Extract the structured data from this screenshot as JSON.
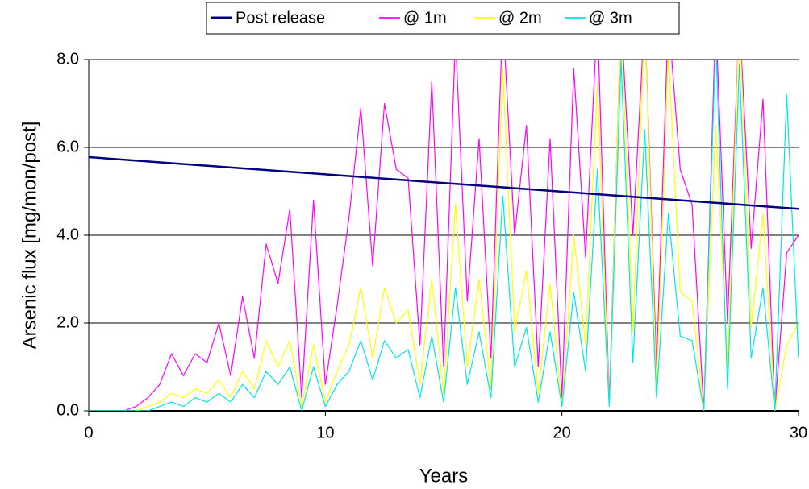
{
  "chart_data": {
    "type": "line",
    "x_label": "Years",
    "y_label": "Arsenic flux [mg/mon/post]",
    "x": [
      0,
      0.5,
      1,
      1.5,
      2,
      2.5,
      3,
      3.5,
      4,
      4.5,
      5,
      5.5,
      6,
      6.5,
      7,
      7.5,
      8,
      8.5,
      9,
      9.5,
      10,
      10.5,
      11,
      11.5,
      12,
      12.5,
      13,
      13.5,
      14,
      14.5,
      15,
      15.5,
      16,
      16.5,
      17,
      17.5,
      18,
      18.5,
      19,
      19.5,
      20,
      20.5,
      21,
      21.5,
      22,
      22.5,
      23,
      23.5,
      24,
      24.5,
      25,
      25.5,
      26,
      26.5,
      27,
      27.5,
      28,
      28.5,
      29,
      29.5,
      30
    ],
    "series": [
      {
        "name": "Post release",
        "color": "#000080",
        "width": 2.5,
        "x": [
          0,
          30
        ],
        "values": [
          5.78,
          4.6
        ]
      },
      {
        "name": "@ 1m",
        "color": "#ff00ff",
        "width": 1.2,
        "values": [
          0,
          0,
          0,
          0,
          0.1,
          0.3,
          0.6,
          1.3,
          0.8,
          1.3,
          1.1,
          2.0,
          0.8,
          2.6,
          1.2,
          3.8,
          2.9,
          4.6,
          0.3,
          4.8,
          0.6,
          2.4,
          4.4,
          6.9,
          3.3,
          7.0,
          5.5,
          5.3,
          1.5,
          7.5,
          1.0,
          8.5,
          2.5,
          6.2,
          1.2,
          9,
          4.0,
          6.5,
          1.0,
          6.2,
          0.3,
          7.8,
          3.5,
          9,
          0.2,
          9,
          4,
          9,
          1,
          9,
          5.5,
          4.7,
          0,
          9,
          2,
          9,
          3.7,
          7.1,
          0,
          3.6,
          4.0
        ]
      },
      {
        "name": "@ 2m",
        "color": "#ffff00",
        "width": 1.2,
        "values": [
          0,
          0,
          0,
          0,
          0,
          0.1,
          0.2,
          0.4,
          0.3,
          0.5,
          0.4,
          0.7,
          0.3,
          0.9,
          0.5,
          1.6,
          1.0,
          1.6,
          0.1,
          1.5,
          0.2,
          0.9,
          1.5,
          2.8,
          1.2,
          2.8,
          2.0,
          2.3,
          0.6,
          3.0,
          0.4,
          4.7,
          1.0,
          3.0,
          0.5,
          7.8,
          1.8,
          3.2,
          0.4,
          2.9,
          0.1,
          4.0,
          1.5,
          7.5,
          0.1,
          9,
          1.8,
          9,
          0.5,
          8.2,
          2.7,
          2.5,
          0,
          6.5,
          1,
          9,
          1.9,
          4.5,
          0,
          1.5,
          2.0
        ]
      },
      {
        "name": "@ 3m",
        "color": "#00e5e5",
        "width": 1.2,
        "values": [
          0,
          0,
          0,
          0,
          0,
          0,
          0.1,
          0.2,
          0.1,
          0.3,
          0.2,
          0.4,
          0.2,
          0.6,
          0.3,
          0.9,
          0.6,
          1.0,
          0,
          1.0,
          0.1,
          0.6,
          0.9,
          1.6,
          0.7,
          1.6,
          1.2,
          1.4,
          0.3,
          1.7,
          0.2,
          2.8,
          0.6,
          1.8,
          0.3,
          4.9,
          1.0,
          1.9,
          0.2,
          1.8,
          0.1,
          2.7,
          0.9,
          5.5,
          0.1,
          8,
          1.1,
          6.4,
          0.3,
          4.5,
          1.7,
          1.6,
          0,
          8.5,
          0.5,
          7.9,
          1.2,
          2.8,
          0,
          7.2,
          1.2
        ]
      }
    ],
    "xlim": [
      0,
      30
    ],
    "xticks": [
      0,
      10,
      20,
      30
    ],
    "ylim": [
      0,
      8
    ],
    "yticks": [
      {
        "value": 0,
        "label": "0.0"
      },
      {
        "value": 2,
        "label": "2.0"
      },
      {
        "value": 4,
        "label": "4.0"
      },
      {
        "value": 6,
        "label": "6.0"
      },
      {
        "value": 8,
        "label": "8.0"
      }
    ],
    "grid": true,
    "legend": "top"
  }
}
